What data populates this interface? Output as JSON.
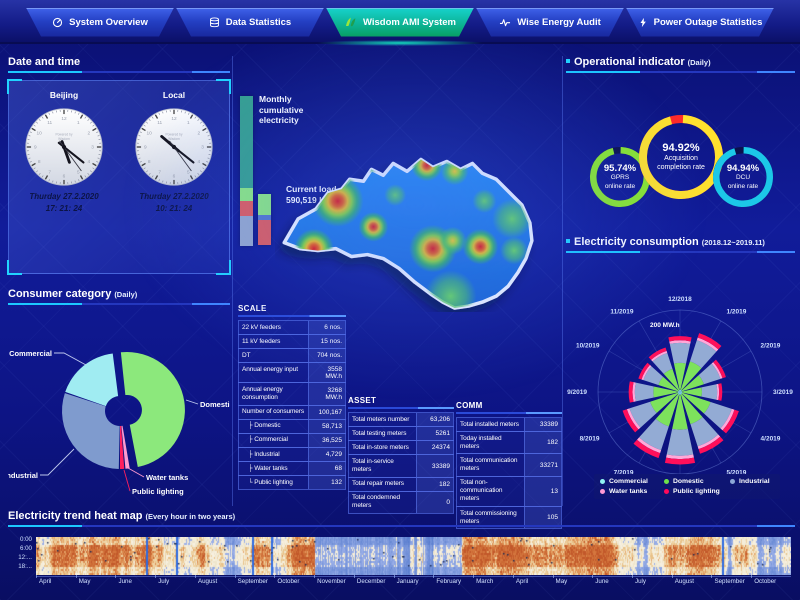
{
  "nav": {
    "tabs": [
      {
        "label": "System Overview"
      },
      {
        "label": "Data Statistics"
      },
      {
        "label": "Wisdom AMI System"
      },
      {
        "label": "Wise Energy Audit"
      },
      {
        "label": "Power Outage Statistics"
      }
    ]
  },
  "datetime": {
    "title": "Date and time",
    "clocks": [
      {
        "label": "Beijing",
        "brand_line1": "Powered by",
        "brand_line2": "Wisdom",
        "date": "Thurday 27.2.2020",
        "time": "17: 21: 24",
        "hour": 17,
        "minute": 21,
        "second": 24
      },
      {
        "label": "Local",
        "brand_line1": "Powered by",
        "brand_line2": "Wisdom",
        "date": "Thurday 27.2.2020",
        "time": "10: 21: 24",
        "hour": 10,
        "minute": 21,
        "second": 24
      }
    ]
  },
  "consumer": {
    "title": "Consumer category",
    "subtitle": "(Daily)"
  },
  "load": {
    "monthly_label": "Monthly cumulative electricity",
    "current_label": "Current load",
    "current_value": "590,519 kW"
  },
  "tables": {
    "scale": {
      "title": "SCALE",
      "rows": [
        {
          "label": "22 kV feeders",
          "value": "6 nos."
        },
        {
          "label": "11 kV feeders",
          "value": "15 nos."
        },
        {
          "label": "DT",
          "value": "704 nos."
        },
        {
          "label": "Annual energy input",
          "value": "3558 MW.h"
        },
        {
          "label": "Annual energy consumption",
          "value": "3268 MW.h"
        },
        {
          "label": "Number of consumers",
          "value": "100,167"
        },
        {
          "label": "Domestic",
          "value": "58,713",
          "prefix": "├"
        },
        {
          "label": "Commercial",
          "value": "36,525",
          "prefix": "├"
        },
        {
          "label": "Industrial",
          "value": "4,729",
          "prefix": "├"
        },
        {
          "label": "Water tanks",
          "value": "68",
          "prefix": "├"
        },
        {
          "label": "Public lighting",
          "value": "132",
          "prefix": "└"
        }
      ]
    },
    "asset": {
      "title": "ASSET",
      "rows": [
        {
          "label": "Total meters number",
          "value": "63,206"
        },
        {
          "label": "Total testing meters",
          "value": "5261"
        },
        {
          "label": "Total in-store meters",
          "value": "24374"
        },
        {
          "label": "Total in-service meters",
          "value": "33389"
        },
        {
          "label": "Total repair meters",
          "value": "182"
        },
        {
          "label": "Total condemned meters",
          "value": "0"
        }
      ]
    },
    "comm": {
      "title": "COMM",
      "rows": [
        {
          "label": "Total installed meters",
          "value": "33389"
        },
        {
          "label": "Today installed meters",
          "value": "182"
        },
        {
          "label": "Total communication meters",
          "value": "33271"
        },
        {
          "label": "Total non-communication meters",
          "value": "13"
        },
        {
          "label": "Total commissioning meters",
          "value": "105"
        }
      ]
    }
  },
  "operational": {
    "title": "Operational indicator",
    "subtitle": "(Daily)",
    "rings": [
      {
        "value": "95.74%",
        "line1": "GPRS",
        "line2": "online rate",
        "color": "#8ae62e",
        "remainder_color": "rgba(10,16,70,0.9)",
        "pct": 95.74
      },
      {
        "value": "94.92%",
        "line1": "Acquisition",
        "line2": "completion rate",
        "color": "#ffe12e",
        "remainder_color": "#ff2a2a",
        "pct": 94.92
      },
      {
        "value": "94.94%",
        "line1": "DCU",
        "line2": "online rate",
        "color": "#1cc8e8",
        "remainder_color": "rgba(10,16,70,0.9)",
        "pct": 94.94
      }
    ]
  },
  "consumption": {
    "title": "Electricity consumption",
    "subtitle": "(2018.12~2019.11)",
    "axis_label": "200 MW.h",
    "legend": [
      {
        "label": "Commercial",
        "color": "#8ff2f2"
      },
      {
        "label": "Domestic",
        "color": "#6ee24a"
      },
      {
        "label": "Industrial",
        "color": "#8ca8d8"
      },
      {
        "label": "Water tanks",
        "color": "#ff9ad5"
      },
      {
        "label": "Public lighting",
        "color": "#ff0a5a"
      }
    ]
  },
  "heatmap": {
    "title": "Electricity trend heat map",
    "subtitle": "(Every hour in two years)",
    "y_labels": [
      "0:00",
      "6:00",
      "12:...",
      "18:..."
    ],
    "months": [
      "April",
      "May",
      "June",
      "July",
      "August",
      "September",
      "October",
      "November",
      "December",
      "January",
      "February",
      "March",
      "April",
      "May",
      "June",
      "July",
      "August",
      "September",
      "October"
    ]
  },
  "chart_data": [
    {
      "id": "consumer-category-pie",
      "type": "pie",
      "title": "Consumer category (Daily)",
      "labels": [
        "Domestic",
        "Water tanks",
        "Public lighting",
        "Industrial",
        "Commercial"
      ],
      "values": [
        49,
        1.5,
        1.5,
        30,
        18
      ],
      "unit": "percent, estimated from slice angles (no numeric labels shown)",
      "colors": [
        "#8ce87c",
        "#ff9ad0",
        "#ff1e5e",
        "#7f9bce",
        "#a0ecf2"
      ]
    },
    {
      "id": "operational-gauges",
      "type": "pie",
      "title": "Operational indicator (Daily)",
      "series": [
        {
          "name": "GPRS online rate",
          "value": 95.74
        },
        {
          "name": "Acquisition completion rate",
          "value": 94.92
        },
        {
          "name": "DCU online rate",
          "value": 94.94
        }
      ]
    },
    {
      "id": "electricity-consumption-rose",
      "type": "area",
      "title": "Electricity consumption (2018.12~2019.11)",
      "categories": [
        "12/2018",
        "1/2019",
        "2/2019",
        "3/2019",
        "4/2019",
        "5/2019",
        "6/2019",
        "7/2019",
        "8/2019",
        "9/2019",
        "10/2019",
        "11/2019"
      ],
      "totals_mwh": [
        185,
        205,
        160,
        140,
        205,
        215,
        240,
        230,
        200,
        170,
        145,
        155
      ],
      "note": "totals estimated against the 200 MW.h grid ring",
      "stack_order": [
        "Commercial",
        "Domestic",
        "Industrial",
        "Water tanks",
        "Public lighting"
      ],
      "stack_fractions": [
        0.04,
        0.48,
        0.36,
        0.045,
        0.075
      ],
      "stack_colors": [
        "#8ff2f2",
        "#7de25c",
        "#93abd4",
        "#ffa8d8",
        "#ff0f5a"
      ],
      "grid_label": "200 MW.h",
      "legend_position": "bottom"
    },
    {
      "id": "electricity-trend-heatmap",
      "type": "heatmap",
      "title": "Electricity trend heat map (Every hour in two years)",
      "x_months": [
        "April",
        "May",
        "June",
        "July",
        "August",
        "September",
        "October",
        "November",
        "December",
        "January",
        "February",
        "March",
        "April",
        "May",
        "June",
        "July",
        "August",
        "September",
        "October"
      ],
      "y_hours": [
        "0:00",
        "6:00",
        "12:00",
        "18:00"
      ],
      "note": "hourly load intensity; warm cream/orange = high load, blue = low load; cool blue band around November-February"
    }
  ]
}
